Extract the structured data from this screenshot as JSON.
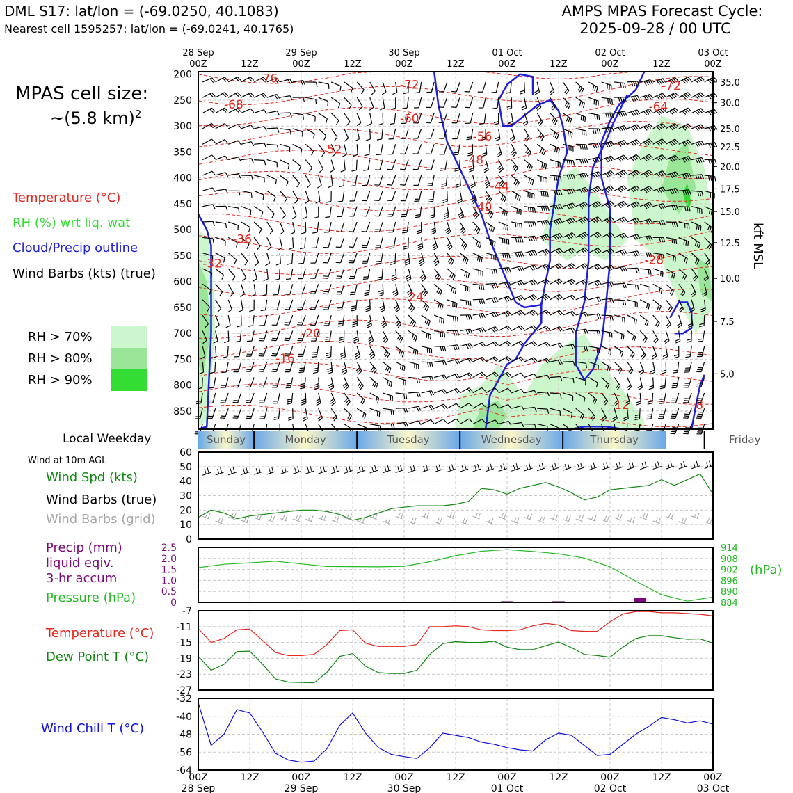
{
  "header": {
    "station": "DML S17: lat/lon = (-69.0250, 40.1083)",
    "nearest": "Nearest cell 1595257: lat/lon = (-69.0241, 40.1765)",
    "product": "AMPS MPAS Forecast Cycle:",
    "cycle": "2025-09-28 / 00 UTC"
  },
  "left_panel": {
    "cell_size_line1": "MPAS cell size:",
    "cell_size_line2": "~(5.8 km)",
    "cell_size_sup": "2",
    "legend_temperature": "Temperature (°C)",
    "legend_rh": "RH (%) wrt liq. wat",
    "legend_cloud": "Cloud/Precip outline",
    "legend_wind": "Wind Barbs (kts) (true)",
    "rh70": "RH > 70%",
    "rh80": "RH > 80%",
    "rh90": "RH > 90%",
    "local_weekday": "Local Weekday",
    "wind_10m": "Wind at 10m AGL",
    "wind_spd": "Wind Spd (kts)",
    "wind_barbs_true": "Wind Barbs (true)",
    "wind_barbs_grid": "Wind Barbs (grid)",
    "precip_1": "Precip (mm)",
    "precip_2": "liquid eqiv.",
    "precip_3": "3-hr accum",
    "pressure": "Pressure (hPa)",
    "temp": "Temperature (°C)",
    "dewpoint": "Dew Point T (°C)",
    "windchill": "Wind Chill T (°C)",
    "kft_msl": "kft MSL",
    "hpa": "(hPa)"
  },
  "colors": {
    "temperature": "#e8261b",
    "rh": "#33dd33",
    "cloud": "#1f1fdf",
    "wind": "#000000",
    "precip": "#7a0a7a",
    "pressure": "#22bb22",
    "dewpoint": "#118811",
    "windchill": "#1010e0",
    "grid_barbs": "#a6a6a6",
    "rh70": "#ccf7cc",
    "rh80": "#99e699",
    "rh90": "#33dd33"
  },
  "chart_data": [
    {
      "type": "heatmap",
      "name": "time-height cross section",
      "x_ticks_top": [
        "28 Sep\n00Z",
        "12Z",
        "29 Sep\n00Z",
        "12Z",
        "30 Sep\n00Z",
        "12Z",
        "01 Oct\n00Z",
        "12Z",
        "02 Oct\n00Z",
        "12Z",
        "03 Oct\n00Z"
      ],
      "y_pressure_ticks": [
        200,
        250,
        300,
        350,
        400,
        450,
        500,
        550,
        600,
        650,
        700,
        750,
        800,
        850
      ],
      "y_kft_ticks": [
        "35.0",
        "30.0",
        "25.0",
        "22.5",
        "20.0",
        "17.5",
        "15.0",
        "12.5",
        "10.0",
        "7.5",
        "5.0"
      ],
      "y_kft_pressures": [
        215,
        255,
        305,
        340,
        378,
        421,
        465,
        525,
        594,
        677,
        778
      ],
      "x_hours_range": [
        0,
        120
      ],
      "y_pressure_range": [
        195,
        885
      ],
      "temperature_contour_labels": [
        {
          "h": 14,
          "p": 208,
          "v": "-76"
        },
        {
          "h": 47,
          "p": 220,
          "v": "-72"
        },
        {
          "h": 108,
          "p": 222,
          "v": "-72"
        },
        {
          "h": 6,
          "p": 258,
          "v": "-68"
        },
        {
          "h": 105,
          "p": 262,
          "v": "-64"
        },
        {
          "h": 47,
          "p": 285,
          "v": "-60"
        },
        {
          "h": 64,
          "p": 320,
          "v": "-56"
        },
        {
          "h": 29,
          "p": 345,
          "v": "-52"
        },
        {
          "h": 62,
          "p": 365,
          "v": "-48"
        },
        {
          "h": 68,
          "p": 416,
          "v": "-44"
        },
        {
          "h": 64,
          "p": 456,
          "v": "-40"
        },
        {
          "h": 8,
          "p": 518,
          "v": "-36"
        },
        {
          "h": 1,
          "p": 565,
          "v": "-32"
        },
        {
          "h": 104,
          "p": 558,
          "v": "-28"
        },
        {
          "h": 48,
          "p": 630,
          "v": "-24"
        },
        {
          "h": 24,
          "p": 700,
          "v": "-20"
        },
        {
          "h": 18,
          "p": 748,
          "v": "-16"
        },
        {
          "h": 96,
          "p": 838,
          "v": "-12"
        },
        {
          "h": 115,
          "p": 838,
          "v": "-8"
        }
      ],
      "weekdays": [
        "Sunday",
        "Monday",
        "Tuesday",
        "Wednesday",
        "Thursday",
        "Friday"
      ]
    },
    {
      "type": "line",
      "name": "wind speed 10m",
      "ylim": [
        0,
        60
      ],
      "yticks": [
        0,
        10,
        20,
        30,
        40,
        50,
        60
      ],
      "x": [
        0,
        3,
        6,
        9,
        12,
        15,
        18,
        21,
        24,
        27,
        30,
        33,
        36,
        39,
        42,
        45,
        48,
        51,
        54,
        57,
        60,
        63,
        66,
        69,
        72,
        75,
        78,
        81,
        84,
        87,
        90,
        93,
        96,
        99,
        102,
        105,
        108,
        111,
        114,
        117,
        120
      ],
      "values": [
        15,
        20,
        18,
        14,
        16,
        17,
        18,
        19,
        20,
        20,
        19,
        17,
        13,
        15,
        18,
        21,
        22,
        23,
        23,
        23,
        24,
        26,
        35,
        34,
        31,
        35,
        37,
        39,
        36,
        32,
        27,
        29,
        34,
        35,
        36,
        37,
        41,
        37,
        41,
        45,
        31
      ]
    },
    {
      "type": "line",
      "name": "pressure / precip",
      "precip_ylim": [
        0,
        2.5
      ],
      "precip_yticks": [
        "0",
        "0.5",
        "1.0",
        "1.5",
        "2.0",
        "2.5"
      ],
      "pressure_ylim": [
        884,
        914
      ],
      "pressure_yticks": [
        884,
        890,
        896,
        902,
        908,
        914
      ],
      "x": [
        0,
        6,
        12,
        18,
        24,
        30,
        36,
        42,
        48,
        54,
        60,
        66,
        72,
        78,
        84,
        90,
        96,
        102,
        108,
        114,
        120
      ],
      "pressure": [
        903.0,
        904.8,
        905.6,
        906.5,
        905.0,
        903.6,
        903.5,
        903.4,
        903.7,
        906.2,
        909.5,
        911.9,
        912.8,
        911.8,
        910.5,
        908.2,
        903.4,
        895.6,
        888.2,
        884.7,
        886.9
      ],
      "precip_bars": [
        {
          "h": 72,
          "v": 0.05
        },
        {
          "h": 84,
          "v": 0.05
        },
        {
          "h": 103,
          "v": 0.2
        }
      ]
    },
    {
      "type": "line",
      "name": "temperature / dew point",
      "ylim": [
        -27,
        -7
      ],
      "yticks": [
        -27,
        -23,
        -19,
        -15,
        -11,
        -7
      ],
      "x": [
        0,
        3,
        6,
        9,
        12,
        15,
        18,
        21,
        24,
        27,
        30,
        33,
        36,
        39,
        42,
        45,
        48,
        51,
        54,
        57,
        60,
        63,
        66,
        69,
        72,
        75,
        78,
        81,
        84,
        87,
        90,
        93,
        96,
        99,
        102,
        105,
        108,
        111,
        114,
        117,
        120
      ],
      "temperature": [
        -11.5,
        -15,
        -14,
        -11.8,
        -11.6,
        -14.5,
        -17.5,
        -18.3,
        -18.3,
        -18.0,
        -15.5,
        -12.0,
        -11.8,
        -15.2,
        -16.0,
        -16.0,
        -16.0,
        -15.5,
        -11.0,
        -11.0,
        -10.8,
        -11.0,
        -11.8,
        -12.0,
        -12.0,
        -11.8,
        -10.8,
        -10.2,
        -10.6,
        -12.0,
        -12.2,
        -12.2,
        -9.8,
        -7.8,
        -7.2,
        -7.2,
        -7.5,
        -7.5,
        -7.7,
        -7.9,
        -8.3
      ],
      "dewpoint": [
        -18.5,
        -22,
        -20.5,
        -17.3,
        -17.2,
        -20.5,
        -24.2,
        -25,
        -25.1,
        -25.2,
        -22.5,
        -18.5,
        -17.8,
        -21,
        -22.6,
        -22.8,
        -22.8,
        -22,
        -18,
        -15.3,
        -14.8,
        -15.0,
        -15.0,
        -14.7,
        -16.2,
        -16.8,
        -16.8,
        -15.8,
        -14.9,
        -16.3,
        -18.0,
        -18.3,
        -18.7,
        -16.2,
        -14.0,
        -13.3,
        -13.3,
        -13.8,
        -14.2,
        -14.1,
        -15.2
      ]
    },
    {
      "type": "line",
      "name": "wind chill",
      "ylim": [
        -64,
        -32
      ],
      "yticks": [
        -64,
        -56,
        -48,
        -40,
        -32
      ],
      "x": [
        0,
        3,
        6,
        9,
        12,
        15,
        18,
        21,
        24,
        27,
        30,
        33,
        36,
        39,
        42,
        45,
        48,
        51,
        54,
        57,
        60,
        63,
        66,
        69,
        72,
        75,
        78,
        81,
        84,
        87,
        90,
        93,
        96,
        99,
        102,
        105,
        108,
        111,
        114,
        117,
        120
      ],
      "values": [
        -34,
        -53,
        -48,
        -37,
        -38.5,
        -47,
        -56.5,
        -59.5,
        -60.5,
        -60,
        -54.5,
        -44,
        -38.5,
        -47.5,
        -54,
        -57,
        -58,
        -58.8,
        -54,
        -47.5,
        -48.5,
        -49.5,
        -51.5,
        -52.5,
        -54,
        -55,
        -55.5,
        -50.5,
        -47.5,
        -48.5,
        -53,
        -57.5,
        -57,
        -52.5,
        -48,
        -44.5,
        -40.5,
        -41.5,
        -43,
        -42,
        -43.5
      ]
    }
  ],
  "bottom_axis": {
    "ticks": [
      "00Z\n28 Sep",
      "12Z",
      "00Z\n29 Sep",
      "12Z",
      "00Z\n30 Sep",
      "12Z",
      "00Z\n01 Oct",
      "12Z",
      "00Z\n02 Oct",
      "12Z",
      "00Z\n03 Oct"
    ]
  }
}
